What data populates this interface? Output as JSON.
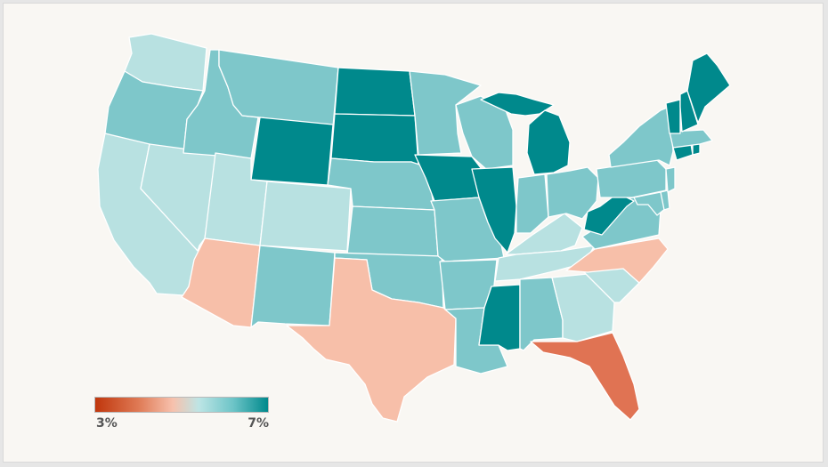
{
  "colors": {
    "background": "#f9f7f3",
    "scale_low": "#c0360c",
    "scale_mid": "#f7c1ad",
    "scale_high": "#00898c"
  },
  "legend": {
    "min_label": "3%",
    "max_label": "7%",
    "min_value": 3,
    "max_value": 7,
    "unit": "%"
  },
  "states": [
    {
      "id": "WA",
      "color": "#b8e1e1"
    },
    {
      "id": "OR",
      "color": "#7ec7ca"
    },
    {
      "id": "CA",
      "color": "#b8e1e1"
    },
    {
      "id": "NV",
      "color": "#b8e1e1"
    },
    {
      "id": "ID",
      "color": "#7ec7ca"
    },
    {
      "id": "MT",
      "color": "#7ec7ca"
    },
    {
      "id": "WY",
      "color": "#00898c"
    },
    {
      "id": "UT",
      "color": "#b8e1e1"
    },
    {
      "id": "AZ",
      "color": "#f7bfa9"
    },
    {
      "id": "CO",
      "color": "#b8e1e1"
    },
    {
      "id": "NM",
      "color": "#7ec7ca"
    },
    {
      "id": "ND",
      "color": "#00898c"
    },
    {
      "id": "SD",
      "color": "#00898c"
    },
    {
      "id": "NE",
      "color": "#7ec7ca"
    },
    {
      "id": "KS",
      "color": "#7ec7ca"
    },
    {
      "id": "OK",
      "color": "#7ec7ca"
    },
    {
      "id": "TX",
      "color": "#f7bfa9"
    },
    {
      "id": "MN",
      "color": "#7ec7ca"
    },
    {
      "id": "IA",
      "color": "#00898c"
    },
    {
      "id": "MO",
      "color": "#7ec7ca"
    },
    {
      "id": "AR",
      "color": "#7ec7ca"
    },
    {
      "id": "LA",
      "color": "#7ec7ca"
    },
    {
      "id": "WI",
      "color": "#7ec7ca"
    },
    {
      "id": "IL",
      "color": "#00898c"
    },
    {
      "id": "MS",
      "color": "#00898c"
    },
    {
      "id": "MI",
      "color": "#00898c"
    },
    {
      "id": "IN",
      "color": "#7ec7ca"
    },
    {
      "id": "KY",
      "color": "#b8e1e1"
    },
    {
      "id": "TN",
      "color": "#b8e1e1"
    },
    {
      "id": "AL",
      "color": "#7ec7ca"
    },
    {
      "id": "OH",
      "color": "#7ec7ca"
    },
    {
      "id": "GA",
      "color": "#b8e1e1"
    },
    {
      "id": "FL",
      "color": "#e07353"
    },
    {
      "id": "SC",
      "color": "#b8e1e1"
    },
    {
      "id": "NC",
      "color": "#f7bfa9"
    },
    {
      "id": "VA",
      "color": "#7ec7ca"
    },
    {
      "id": "WV",
      "color": "#00898c"
    },
    {
      "id": "PA",
      "color": "#7ec7ca"
    },
    {
      "id": "NY",
      "color": "#7ec7ca"
    },
    {
      "id": "MD",
      "color": "#7ec7ca"
    },
    {
      "id": "DE",
      "color": "#7ec7ca"
    },
    {
      "id": "NJ",
      "color": "#7ec7ca"
    },
    {
      "id": "CT",
      "color": "#00898c"
    },
    {
      "id": "RI",
      "color": "#00898c"
    },
    {
      "id": "MA",
      "color": "#7ec7ca"
    },
    {
      "id": "VT",
      "color": "#00898c"
    },
    {
      "id": "NH",
      "color": "#00898c"
    },
    {
      "id": "ME",
      "color": "#00898c"
    }
  ]
}
